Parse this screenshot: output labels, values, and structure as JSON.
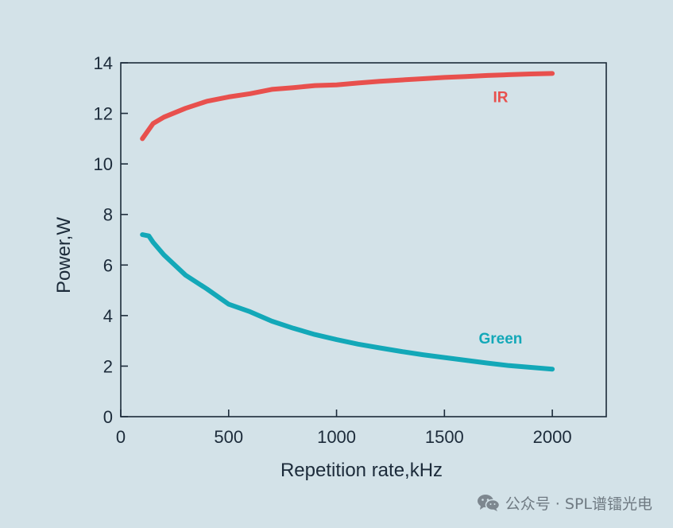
{
  "chart_data": {
    "type": "line",
    "title": "",
    "xlabel": "Repetition rate,kHz",
    "ylabel": "Power,W",
    "xlim": [
      0,
      2250
    ],
    "ylim": [
      0,
      14
    ],
    "xticks": [
      0,
      500,
      1000,
      1500,
      2000
    ],
    "yticks": [
      0,
      2,
      4,
      6,
      8,
      10,
      12,
      14
    ],
    "grid": false,
    "series": [
      {
        "name": "IR",
        "color": "#e8504d",
        "x": [
          100,
          150,
          200,
          300,
          400,
          500,
          600,
          700,
          800,
          900,
          1000,
          1100,
          1200,
          1300,
          1400,
          1500,
          1600,
          1700,
          1800,
          1900,
          2000
        ],
        "y": [
          11.0,
          11.6,
          11.85,
          12.2,
          12.48,
          12.65,
          12.78,
          12.95,
          13.02,
          13.1,
          13.13,
          13.2,
          13.27,
          13.32,
          13.37,
          13.42,
          13.46,
          13.5,
          13.53,
          13.56,
          13.58
        ]
      },
      {
        "name": "Green",
        "color": "#13a8b8",
        "x": [
          100,
          130,
          150,
          200,
          300,
          400,
          500,
          600,
          700,
          800,
          900,
          1000,
          1100,
          1200,
          1300,
          1400,
          1500,
          1600,
          1700,
          1800,
          1900,
          2000
        ],
        "y": [
          7.2,
          7.15,
          6.9,
          6.4,
          5.6,
          5.05,
          4.45,
          4.15,
          3.78,
          3.5,
          3.25,
          3.05,
          2.87,
          2.72,
          2.58,
          2.45,
          2.34,
          2.23,
          2.12,
          2.02,
          1.95,
          1.88
        ]
      }
    ]
  },
  "watermark": {
    "icon": "wechat-icon",
    "text": "公众号 · SPL谱镭光电"
  }
}
